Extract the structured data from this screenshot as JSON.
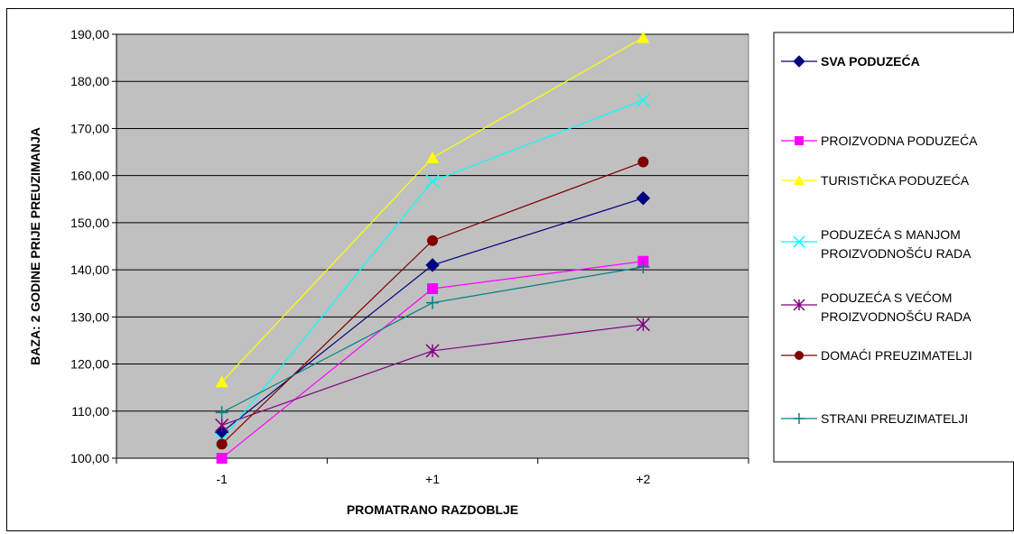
{
  "chart_data": {
    "type": "line",
    "title": "",
    "xlabel": "PROMATRANO RAZDOBLJE",
    "ylabel": "BAZA: 2 GODINE PRIJE PREUZIMANJA",
    "categories": [
      "-1",
      "+1",
      "+2"
    ],
    "ylim": [
      100,
      190
    ],
    "yticks": [
      "100,00",
      "110,00",
      "120,00",
      "130,00",
      "140,00",
      "150,00",
      "160,00",
      "170,00",
      "180,00",
      "190,00"
    ],
    "grid": true,
    "plot_background": "#c0c0c0",
    "legend_position": "right",
    "series": [
      {
        "name": "SVA PODUZEĆA",
        "values": [
          105.5,
          141.0,
          155.2
        ],
        "color": "#000080",
        "marker": "diamond",
        "bold": true
      },
      {
        "name": "PROIZVODNA PODUZEĆA",
        "values": [
          100.0,
          136.0,
          141.8
        ],
        "color": "#ff00ff",
        "marker": "square"
      },
      {
        "name": "TURISTIČKA PODUZEĆA",
        "values": [
          116.2,
          163.8,
          189.3
        ],
        "color": "#ffff00",
        "marker": "triangle"
      },
      {
        "name_lines": [
          "PODUZEĆA S MANJOM",
          "PROIZVODNOŠĆU RADA"
        ],
        "values": [
          104.0,
          158.8,
          176.0
        ],
        "color": "#00ffff",
        "marker": "x"
      },
      {
        "name_lines": [
          "PODUZEĆA S VEĆOM",
          "PROIZVODNOŠĆU RADA"
        ],
        "values": [
          107.0,
          122.8,
          128.4
        ],
        "color": "#800080",
        "marker": "star"
      },
      {
        "name": "DOMAĆI PREUZIMATELJI",
        "values": [
          103.0,
          146.2,
          162.9
        ],
        "color": "#800000",
        "marker": "circle"
      },
      {
        "name": "STRANI PREUZIMATELJI",
        "values": [
          109.7,
          133.0,
          140.6
        ],
        "color": "#008080",
        "marker": "plus"
      }
    ]
  }
}
